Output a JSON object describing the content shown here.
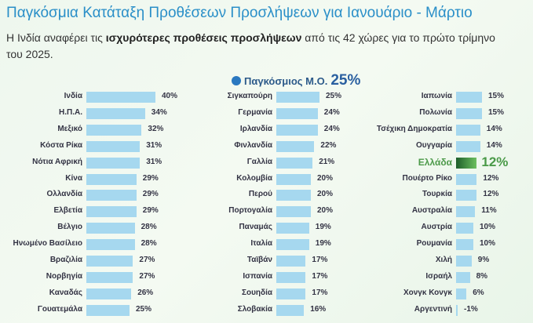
{
  "chart_data": {
    "type": "bar",
    "title": "Παγκόσμια Κατάταξη Προθέσεων Προσλήψεων για Ιανουάριο - Μάρτιο",
    "subtitle_pre": "Η Ινδία αναφέρει τις ",
    "subtitle_bold": "ισχυρότερες προθέσεις προσλήψεων",
    "subtitle_post": " από τις 42 χώρες για το πρώτο τρίμηνο του 2025.",
    "global_avg_label": "Παγκόσμιος Μ.Ο.",
    "global_avg_value": "25%",
    "highlight": "Ελλάδα",
    "colors": {
      "bar": "#a6d8ef",
      "highlight": "#4d9a4a",
      "title": "#2a8fc8"
    },
    "columns": [
      [
        [
          "Ινδία",
          40
        ],
        [
          "Η.Π.Α.",
          34
        ],
        [
          "Μεξικό",
          32
        ],
        [
          "Κόστα Ρίκα",
          31
        ],
        [
          "Νότια Αφρική",
          31
        ],
        [
          "Κίνα",
          29
        ],
        [
          "Ολλανδία",
          29
        ],
        [
          "Ελβετία",
          29
        ],
        [
          "Βέλγιο",
          28
        ],
        [
          "Ηνωμένο Βασίλειο",
          28
        ],
        [
          "Βραζιλία",
          27
        ],
        [
          "Νορβηγία",
          27
        ],
        [
          "Καναδάς",
          26
        ],
        [
          "Γουατεμάλα",
          25
        ]
      ],
      [
        [
          "Σιγκαπούρη",
          25
        ],
        [
          "Γερμανία",
          24
        ],
        [
          "Ιρλανδία",
          24
        ],
        [
          "Φινλανδία",
          22
        ],
        [
          "Γαλλία",
          21
        ],
        [
          "Κολομβία",
          20
        ],
        [
          "Περού",
          20
        ],
        [
          "Πορτογαλία",
          20
        ],
        [
          "Παναμάς",
          19
        ],
        [
          "Ιταλία",
          19
        ],
        [
          "Ταϊβάν",
          17
        ],
        [
          "Ισπανία",
          17
        ],
        [
          "Σουηδία",
          17
        ],
        [
          "Σλοβακία",
          16
        ]
      ],
      [
        [
          "Ιαπωνία",
          15
        ],
        [
          "Πολωνία",
          15
        ],
        [
          "Τσέχικη Δημοκρατία",
          14
        ],
        [
          "Ουγγαρία",
          14
        ],
        [
          "Ελλάδα",
          12
        ],
        [
          "Πουέρτο Ρίκο",
          12
        ],
        [
          "Τουρκία",
          12
        ],
        [
          "Αυστραλία",
          11
        ],
        [
          "Αυστρία",
          10
        ],
        [
          "Ρουμανία",
          10
        ],
        [
          "Χιλή",
          9
        ],
        [
          "Ισραήλ",
          8
        ],
        [
          "Χονγκ Κονγκ",
          6
        ],
        [
          "Αργεντινή",
          -1
        ]
      ]
    ]
  }
}
